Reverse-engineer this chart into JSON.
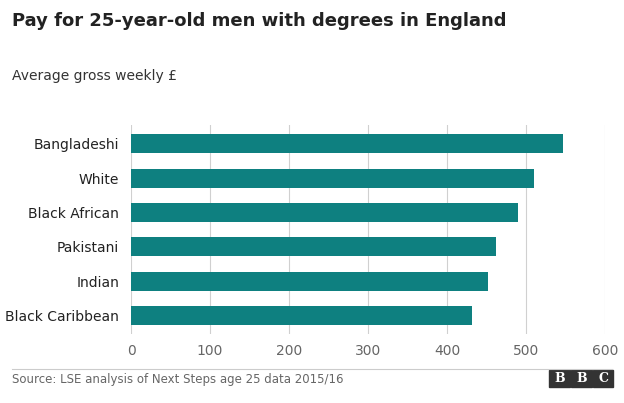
{
  "title": "Pay for 25-year-old men with degrees in England",
  "subtitle": "Average gross weekly £",
  "categories": [
    "Black Caribbean",
    "Indian",
    "Pakistani",
    "Black African",
    "White",
    "Bangladeshi"
  ],
  "values": [
    432,
    452,
    462,
    490,
    510,
    547
  ],
  "bar_color": "#0e8080",
  "xlim": [
    0,
    600
  ],
  "xticks": [
    0,
    100,
    200,
    300,
    400,
    500,
    600
  ],
  "source": "Source: LSE analysis of Next Steps age 25 data 2015/16",
  "bbc_logo_text": "BBC",
  "background_color": "#ffffff",
  "title_fontsize": 13,
  "subtitle_fontsize": 10,
  "label_fontsize": 10,
  "tick_fontsize": 10,
  "source_fontsize": 8.5,
  "bar_height": 0.55
}
